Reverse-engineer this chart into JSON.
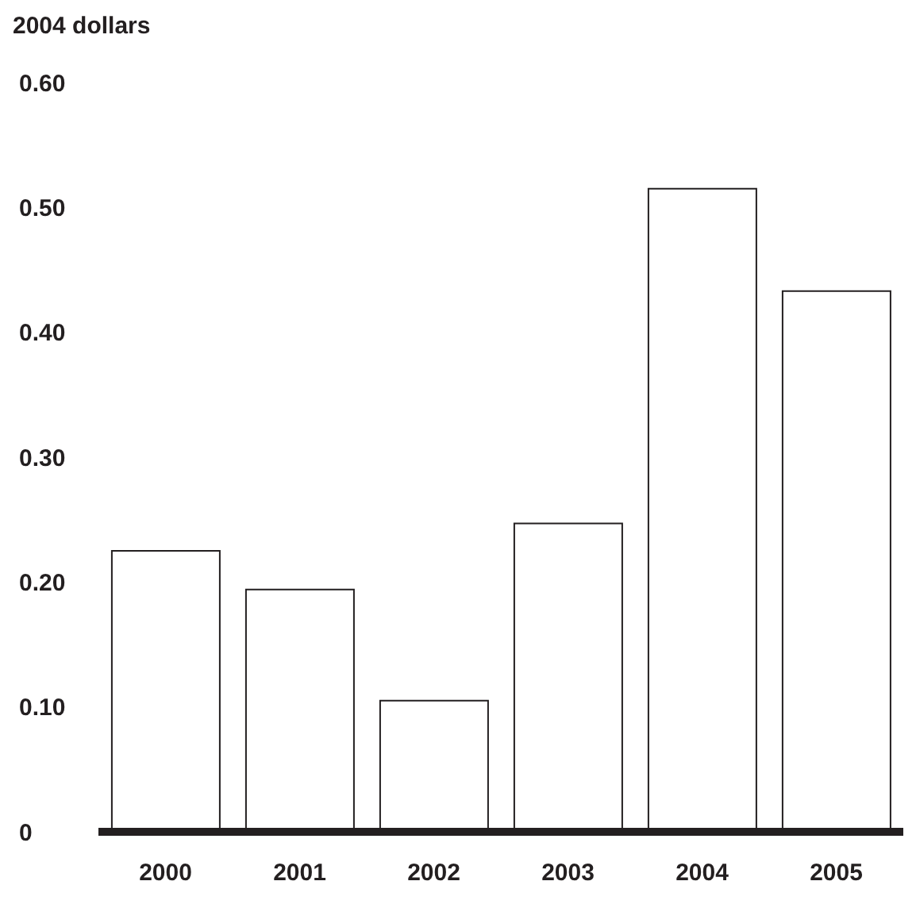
{
  "chart_data": {
    "type": "bar",
    "ylabel": "2004 dollars",
    "categories": [
      "2000",
      "2001",
      "2002",
      "2003",
      "2004",
      "2005"
    ],
    "values": [
      0.225,
      0.194,
      0.105,
      0.247,
      0.515,
      0.433
    ],
    "color": "#ffffff",
    "ylim": [
      0,
      0.6
    ],
    "yticks": [
      {
        "value": 0,
        "label": "0"
      },
      {
        "value": 0.1,
        "label": "0.10"
      },
      {
        "value": 0.2,
        "label": "0.20"
      },
      {
        "value": 0.3,
        "label": "0.30"
      },
      {
        "value": 0.4,
        "label": "0.40"
      },
      {
        "value": 0.5,
        "label": "0.50"
      },
      {
        "value": 0.6,
        "label": "0.60"
      }
    ],
    "grid": false,
    "legend": false
  }
}
